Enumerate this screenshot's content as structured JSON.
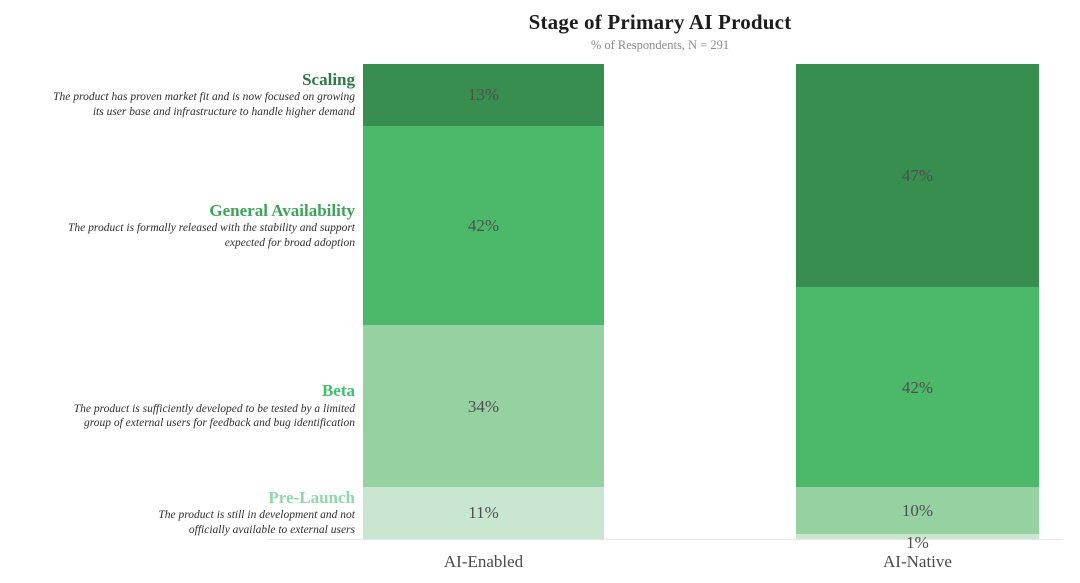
{
  "header": {
    "title": "Stage of Primary AI Product",
    "subtitle": "% of Respondents, N = 291"
  },
  "chart_data": {
    "type": "bar",
    "stacked": true,
    "orientation": "vertical",
    "unit": "%",
    "title": "Stage of Primary AI Product",
    "subtitle": "% of Respondents, N = 291",
    "categories": [
      "AI-Enabled",
      "AI-Native"
    ],
    "ylim": [
      0,
      100
    ],
    "grid": false,
    "legend": "stage labels with descriptions on left side, top-to-bottom order matches stack order",
    "stages": [
      {
        "name": "Scaling",
        "description": "The product has proven market fit and is now focused on growing\nits user base and infrastructure to handle higher demand",
        "bar_color": "#388E4F",
        "label_color": "#2C7B44",
        "values": [
          13,
          47
        ]
      },
      {
        "name": "General Availability",
        "description": "The product is formally released with the stability and support\nexpected for broad adoption",
        "bar_color": "#4CB96A",
        "label_color": "#3FA25B",
        "values": [
          42,
          42
        ]
      },
      {
        "name": "Beta",
        "description": "The product is sufficiently developed to be tested by a limited\ngroup of external users for feedback and bug identification",
        "bar_color": "#96D1A2",
        "label_color": "#43BE6F",
        "values": [
          34,
          10
        ]
      },
      {
        "name": "Pre-Launch",
        "description": "The product is still in development and not\nofficially available to external users",
        "bar_color": "#C9E7D0",
        "label_color": "#92D7A9",
        "values": [
          11,
          1
        ]
      }
    ],
    "value_label_color": "#4F4F4F",
    "axis_label_color": "#4A4A4A"
  }
}
